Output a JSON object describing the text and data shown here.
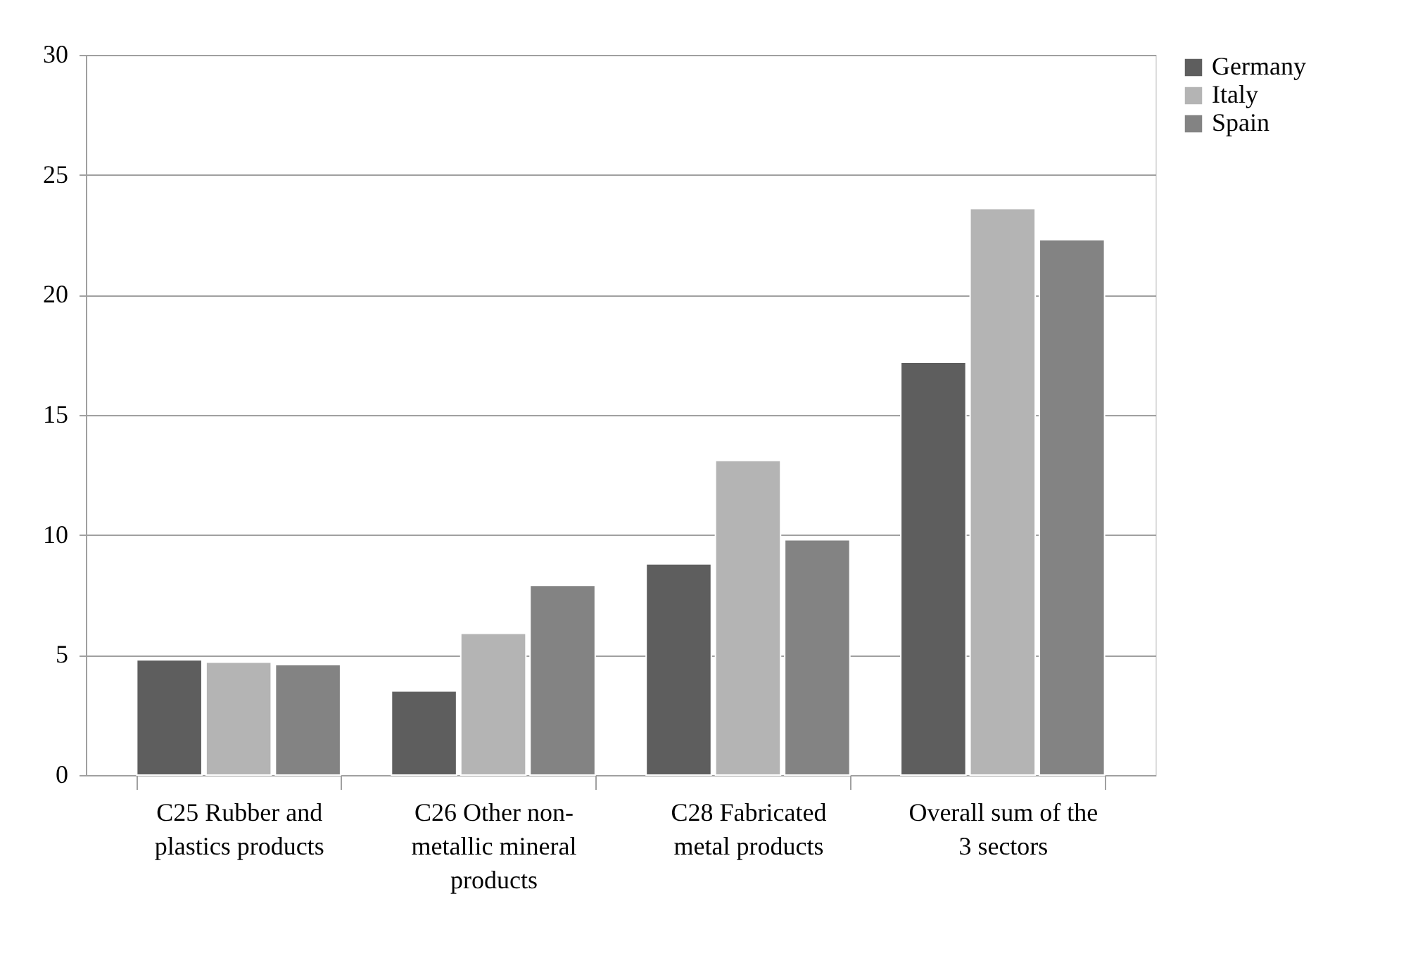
{
  "chart_data": {
    "type": "bar",
    "categories": [
      "C25 Rubber and plastics products",
      "C26 Other non-metallic mineral products",
      "C28 Fabricated metal products",
      "Overall sum of the 3 sectors"
    ],
    "series": [
      {
        "name": "Germany",
        "color": "#5e5e5e",
        "values": [
          4.8,
          3.5,
          8.8,
          17.2
        ]
      },
      {
        "name": "Italy",
        "color": "#b4b4b4",
        "values": [
          4.7,
          5.9,
          13.1,
          23.6
        ]
      },
      {
        "name": "Spain",
        "color": "#838383",
        "values": [
          4.6,
          7.9,
          9.8,
          22.3
        ]
      }
    ],
    "ylim": [
      0,
      30
    ],
    "yticks": [
      0,
      5,
      10,
      15,
      20,
      25,
      30
    ],
    "grid": "y",
    "legend": "right"
  }
}
